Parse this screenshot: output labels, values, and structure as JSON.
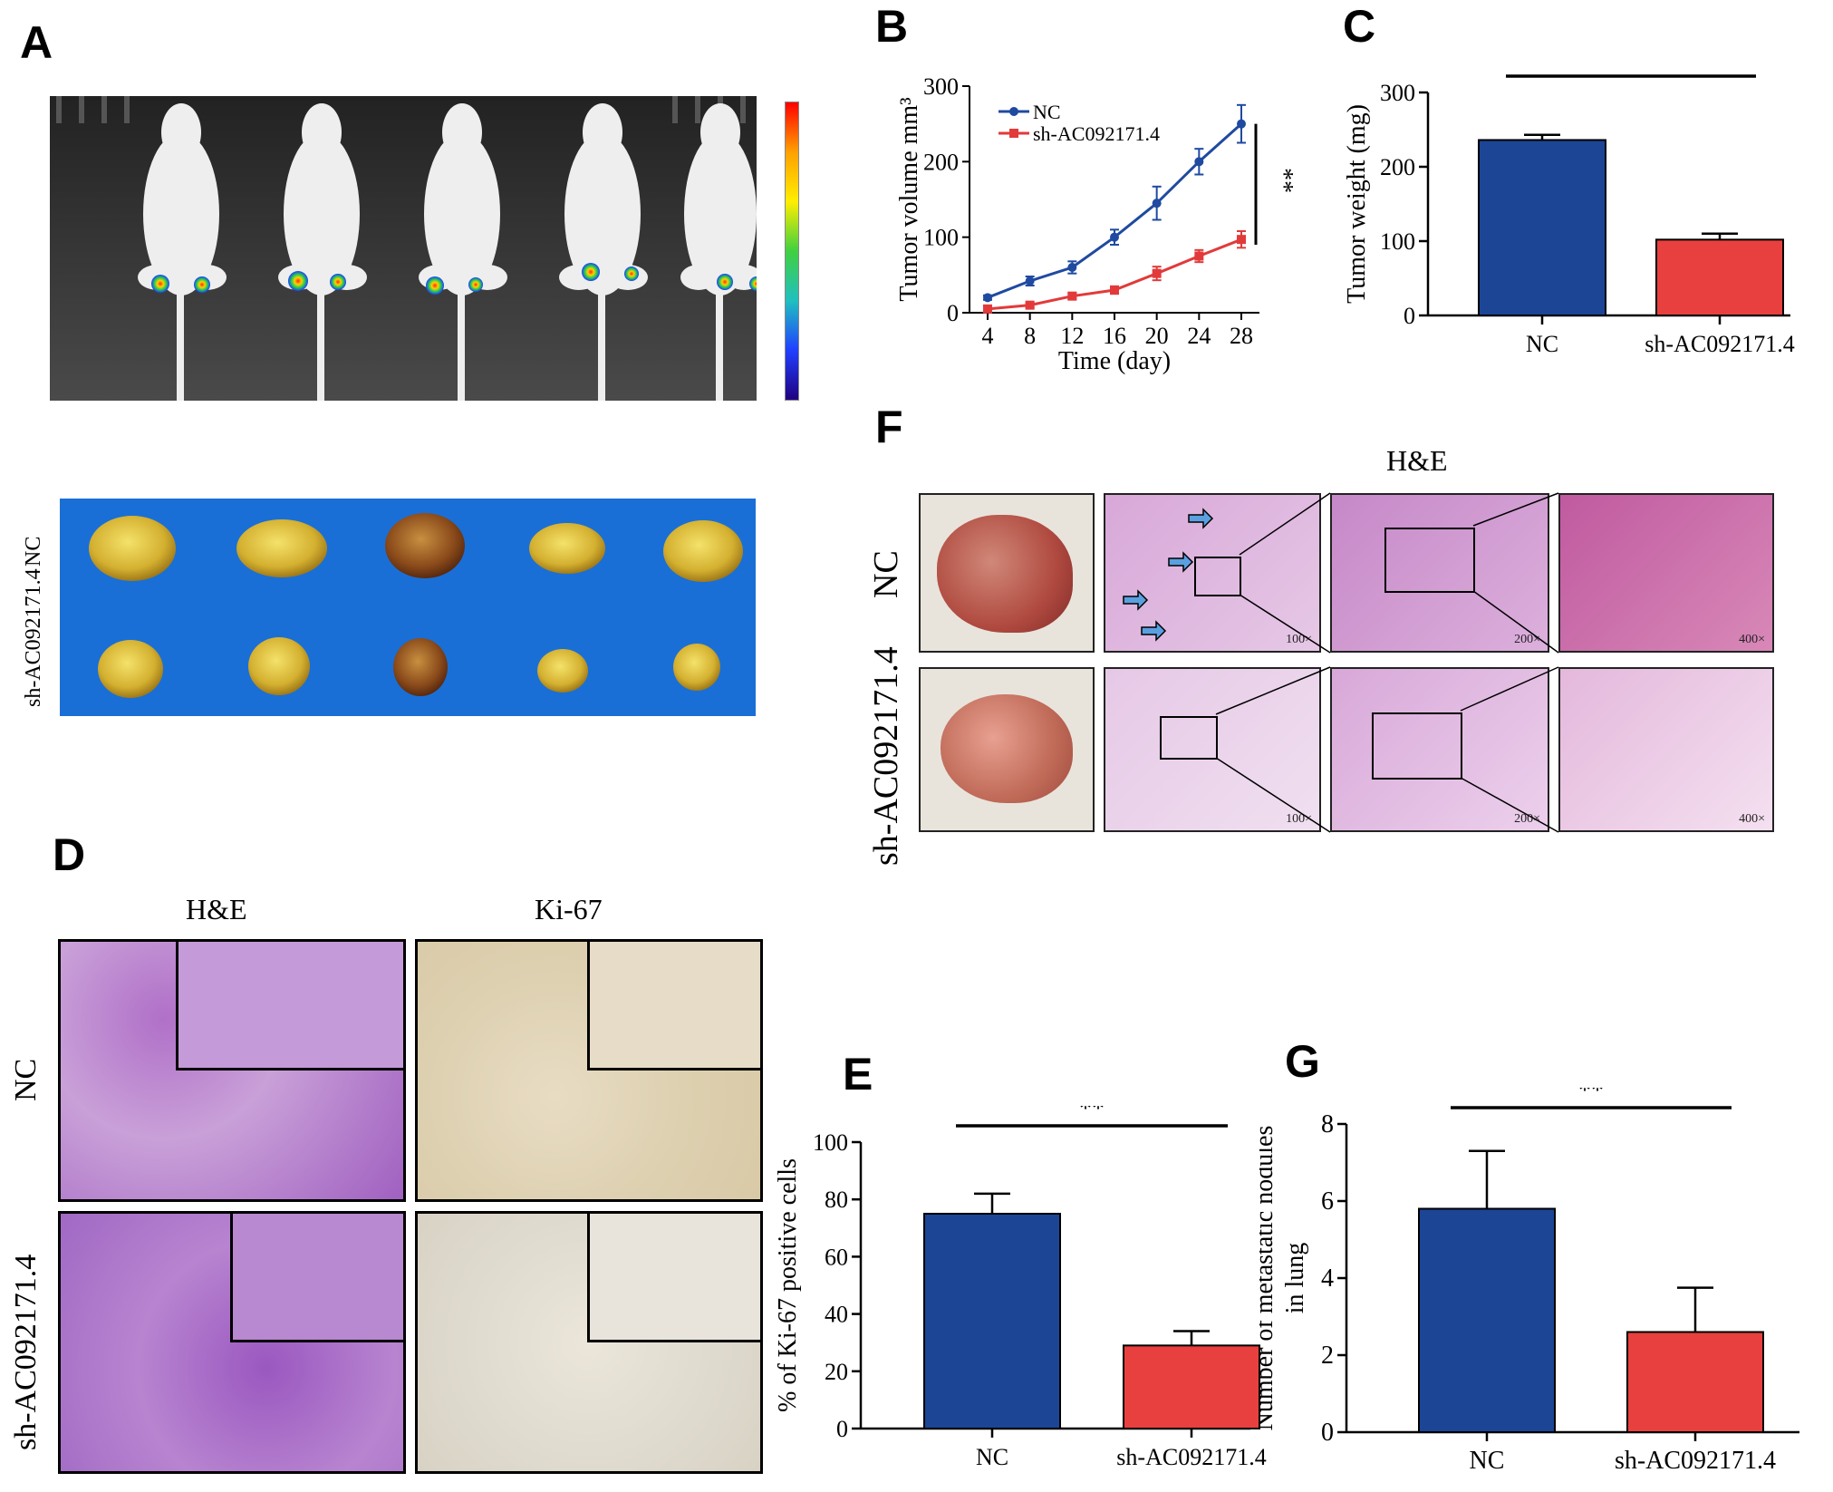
{
  "panels": {
    "A": "A",
    "B": "B",
    "C": "C",
    "D": "D",
    "E": "E",
    "F": "F",
    "G": "G"
  },
  "groups": {
    "nc": "NC",
    "sh": "sh-AC092171.4"
  },
  "panel_D": {
    "col1": "H&E",
    "col2": "Ki-67"
  },
  "panel_F": {
    "title": "H&E",
    "mag1": "100×",
    "mag2": "200×",
    "mag3": "400×"
  },
  "colors": {
    "nc": "#1f4aa0",
    "sh": "#e23a3a",
    "bar_nc": "#1c4596",
    "bar_sh": "#e8403f",
    "bg_blue": "#1a6fd6"
  },
  "chart_data": [
    {
      "panel": "B",
      "type": "line",
      "x": [
        4,
        8,
        12,
        16,
        20,
        24,
        28
      ],
      "xlabel": "Time (day)",
      "ylabel": "Tumor volume mm³",
      "ylim": [
        0,
        300
      ],
      "yticks": [
        0,
        100,
        200,
        300
      ],
      "series": [
        {
          "name": "NC",
          "values": [
            20,
            42,
            60,
            100,
            145,
            200,
            250
          ],
          "errors": [
            3,
            6,
            8,
            10,
            22,
            17,
            25
          ]
        },
        {
          "name": "sh-AC092171.4",
          "values": [
            5,
            10,
            22,
            30,
            52,
            75,
            97
          ],
          "errors": [
            2,
            3,
            4,
            5,
            9,
            8,
            11
          ]
        }
      ],
      "significance": "**",
      "legend": "top-left"
    },
    {
      "panel": "C",
      "type": "bar",
      "categories": [
        "NC",
        "sh-AC092171.4"
      ],
      "values": [
        236,
        102
      ],
      "errors": [
        7,
        8
      ],
      "ylabel": "Tumor weight (mg)",
      "ylim": [
        0,
        300
      ],
      "yticks": [
        0,
        100,
        200,
        300
      ],
      "significance": "**"
    },
    {
      "panel": "E",
      "type": "bar",
      "categories": [
        "NC",
        "sh-AC092171.4"
      ],
      "values": [
        75,
        29
      ],
      "errors": [
        7,
        5
      ],
      "ylabel": "% of Ki-67 positive cells",
      "ylim": [
        0,
        100
      ],
      "yticks": [
        0,
        20,
        40,
        60,
        80,
        100
      ],
      "significance": "**"
    },
    {
      "panel": "G",
      "type": "bar",
      "categories": [
        "NC",
        "sh-AC092171.4"
      ],
      "values": [
        5.8,
        2.6
      ],
      "errors": [
        1.5,
        1.15
      ],
      "ylabel": "Number of metastatic nodules in lung",
      "ylim": [
        0,
        8
      ],
      "yticks": [
        0,
        2,
        4,
        6,
        8
      ],
      "significance": "**"
    }
  ]
}
